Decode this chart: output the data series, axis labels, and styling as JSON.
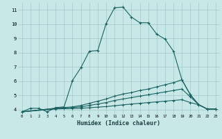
{
  "bg_color": "#c8e8e8",
  "grid_color": "#a0c8c8",
  "line_color": "#1a6060",
  "xlabel": "Humidex (Indice chaleur)",
  "xlim": [
    -0.5,
    23.5
  ],
  "ylim": [
    3.7,
    11.5
  ],
  "yticks": [
    4,
    5,
    6,
    7,
    8,
    9,
    10,
    11
  ],
  "xticks": [
    0,
    1,
    2,
    3,
    4,
    5,
    6,
    7,
    8,
    9,
    10,
    11,
    12,
    13,
    14,
    15,
    16,
    17,
    18,
    19,
    20,
    21,
    22,
    23
  ],
  "line1_x": [
    0,
    1,
    2,
    3,
    4,
    5,
    6,
    7,
    8,
    9,
    10,
    11,
    12,
    13,
    14,
    15,
    16,
    17,
    18,
    19,
    20,
    21,
    22,
    23
  ],
  "line1_y": [
    3.85,
    4.1,
    4.1,
    3.85,
    4.15,
    4.2,
    6.05,
    6.95,
    8.1,
    8.15,
    10.05,
    11.15,
    11.2,
    10.5,
    10.1,
    10.1,
    9.3,
    8.95,
    8.1,
    6.1,
    5.05,
    4.35,
    4.05,
    4.05
  ],
  "line2_x": [
    0,
    4,
    5,
    6,
    7,
    8,
    9,
    10,
    11,
    12,
    13,
    14,
    15,
    16,
    17,
    18,
    19,
    20,
    21,
    22,
    23
  ],
  "line2_y": [
    3.85,
    4.1,
    4.15,
    4.2,
    4.3,
    4.45,
    4.6,
    4.75,
    4.95,
    5.1,
    5.2,
    5.35,
    5.45,
    5.6,
    5.75,
    5.9,
    6.1,
    5.05,
    4.35,
    4.05,
    4.05
  ],
  "line3_x": [
    0,
    4,
    5,
    6,
    7,
    8,
    9,
    10,
    11,
    12,
    13,
    14,
    15,
    16,
    17,
    18,
    19,
    20,
    21,
    22,
    23
  ],
  "line3_y": [
    3.85,
    4.1,
    4.12,
    4.15,
    4.2,
    4.3,
    4.4,
    4.5,
    4.65,
    4.75,
    4.85,
    4.95,
    5.05,
    5.15,
    5.25,
    5.35,
    5.45,
    4.9,
    4.35,
    4.05,
    4.05
  ],
  "line4_x": [
    0,
    4,
    5,
    6,
    7,
    8,
    9,
    10,
    11,
    12,
    13,
    14,
    15,
    16,
    17,
    18,
    19,
    20,
    21,
    22,
    23
  ],
  "line4_y": [
    3.85,
    4.05,
    4.07,
    4.08,
    4.1,
    4.14,
    4.18,
    4.22,
    4.28,
    4.34,
    4.4,
    4.45,
    4.5,
    4.55,
    4.6,
    4.65,
    4.7,
    4.5,
    4.35,
    4.05,
    4.05
  ]
}
